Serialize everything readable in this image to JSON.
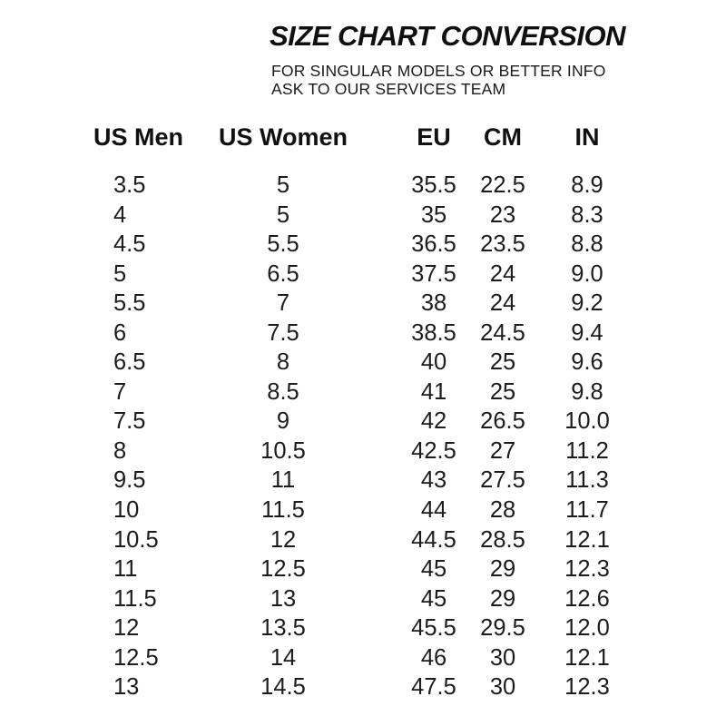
{
  "page": {
    "background_color": "#ffffff",
    "text_color": "#161616"
  },
  "header": {
    "title": "SIZE CHART CONVERSION",
    "subtitle_line1": "FOR SINGULAR MODELS OR BETTER INFO",
    "subtitle_line2": "ASK TO OUR SERVICES TEAM"
  },
  "chart_data": {
    "type": "table",
    "title": "SIZE CHART CONVERSION",
    "columns": [
      "US Men",
      "US Women",
      "EU",
      "CM",
      "IN"
    ],
    "column_alignment": [
      "left",
      "center",
      "center",
      "center",
      "center"
    ],
    "rows": [
      [
        "3.5",
        "5",
        "35.5",
        "22.5",
        "8.9"
      ],
      [
        "4",
        "5",
        "35",
        "23",
        "8.3"
      ],
      [
        "4.5",
        "5.5",
        "36.5",
        "23.5",
        "8.8"
      ],
      [
        "5",
        "6.5",
        "37.5",
        "24",
        "9.0"
      ],
      [
        "5.5",
        "7",
        "38",
        "24",
        "9.2"
      ],
      [
        "6",
        "7.5",
        "38.5",
        "24.5",
        "9.4"
      ],
      [
        "6.5",
        "8",
        "40",
        "25",
        "9.6"
      ],
      [
        "7",
        "8.5",
        "41",
        "25",
        "9.8"
      ],
      [
        "7.5",
        "9",
        "42",
        "26.5",
        "10.0"
      ],
      [
        "8",
        "10.5",
        "42.5",
        "27",
        "11.2"
      ],
      [
        "9.5",
        "11",
        "43",
        "27.5",
        "11.3"
      ],
      [
        "10",
        "11.5",
        "44",
        "28",
        "11.7"
      ],
      [
        "10.5",
        "12",
        "44.5",
        "28.5",
        "12.1"
      ],
      [
        "11",
        "12.5",
        "45",
        "29",
        "12.3"
      ],
      [
        "11.5",
        "13",
        "45",
        "29",
        "12.6"
      ],
      [
        "12",
        "13.5",
        "45.5",
        "29.5",
        "12.0"
      ],
      [
        "12.5",
        "14",
        "46",
        "30",
        "12.1"
      ],
      [
        "13",
        "14.5",
        "47.5",
        "30",
        "12.3"
      ]
    ],
    "layout": {
      "grid": "off",
      "header_style": "bold",
      "row_count": 18
    }
  }
}
